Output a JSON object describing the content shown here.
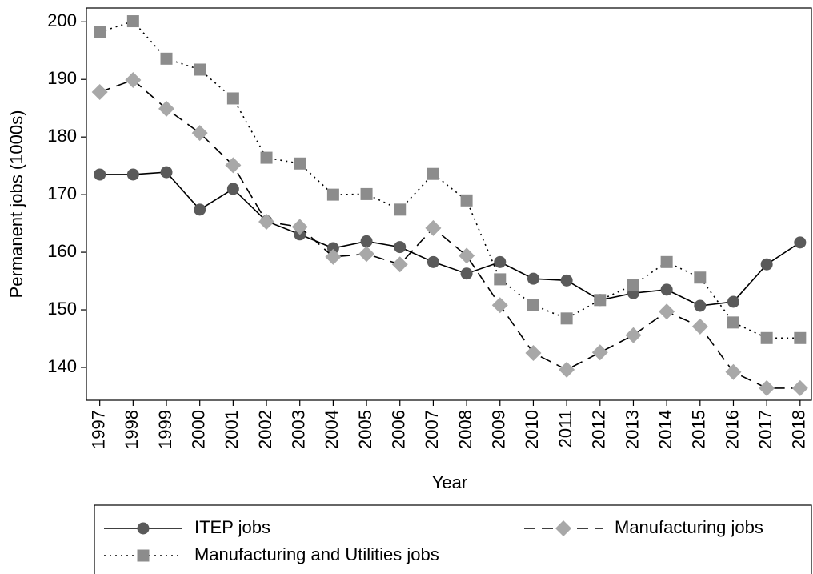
{
  "chart_data": {
    "type": "line",
    "y_label": "Permanent jobs (1000s)",
    "x_label": "Year",
    "x": [
      1997,
      1998,
      1999,
      2000,
      2001,
      2002,
      2003,
      2004,
      2005,
      2006,
      2007,
      2008,
      2009,
      2010,
      2011,
      2012,
      2013,
      2014,
      2015,
      2016,
      2017,
      2018
    ],
    "xlim": [
      1996.6,
      2018.34
    ],
    "xticks": [
      1997,
      1998,
      1999,
      2000,
      2001,
      2002,
      2003,
      2004,
      2005,
      2006,
      2007,
      2008,
      2009,
      2010,
      2011,
      2012,
      2013,
      2014,
      2015,
      2016,
      2017,
      2018
    ],
    "ylim": [
      134.3,
      202.4
    ],
    "yticks": [
      140,
      150,
      160,
      170,
      180,
      190,
      200
    ],
    "series": [
      {
        "name": "ITEP jobs",
        "color": "#5a5a5a",
        "marker": "circle",
        "dash": "solid",
        "values": [
          173.5,
          173.5,
          173.9,
          167.4,
          171,
          165.4,
          163.1,
          160.7,
          161.9,
          160.9,
          158.3,
          156.3,
          158.3,
          155.4,
          155.1,
          151.7,
          152.9,
          153.5,
          150.7,
          151.4,
          157.9,
          161.7
        ]
      },
      {
        "name": "Manufacturing jobs",
        "color": "#a8a8a8",
        "marker": "diamond",
        "dash": "dashed",
        "values": [
          187.8,
          189.9,
          184.9,
          180.7,
          175.1,
          165.3,
          164.4,
          159.2,
          159.7,
          157.9,
          164.2,
          159.4,
          150.8,
          142.5,
          139.6,
          142.6,
          145.6,
          149.7,
          147.1,
          139.2,
          136.4,
          136.4
        ]
      },
      {
        "name": "Manufacturing and Utilities jobs",
        "color": "#8c8c8c",
        "marker": "square",
        "dash": "dotted",
        "values": [
          198.2,
          200.1,
          193.6,
          191.7,
          186.7,
          176.4,
          175.4,
          170,
          170.1,
          167.4,
          173.6,
          169,
          155.3,
          150.8,
          148.5,
          151.7,
          154.3,
          158.3,
          155.6,
          147.8,
          145.1,
          145.1
        ]
      }
    ]
  }
}
